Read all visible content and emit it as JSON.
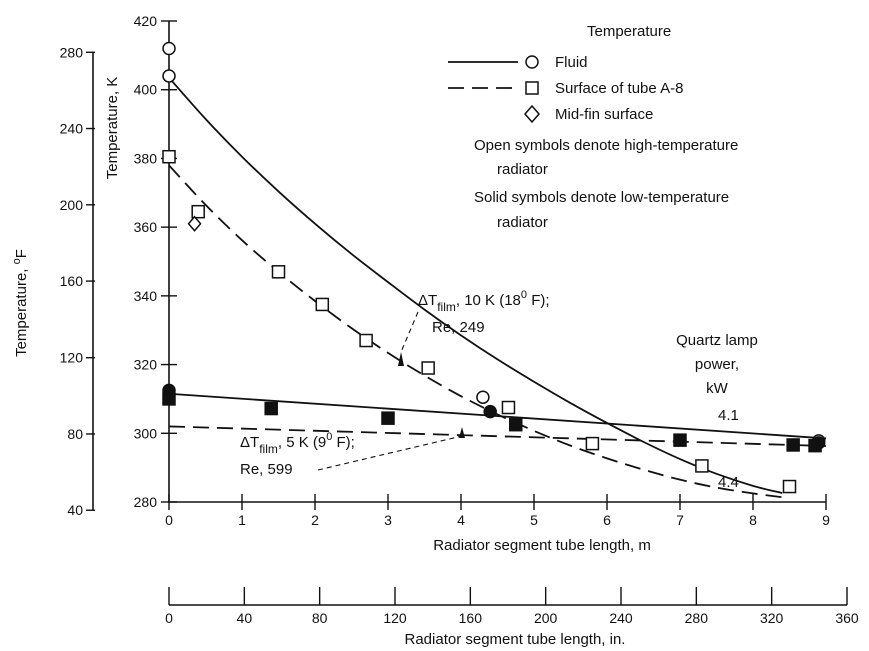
{
  "chart_data": {
    "type": "line",
    "x_axis": {
      "label": "Radiator segment tube length, m",
      "range": [
        0,
        9
      ],
      "ticks": [
        "0",
        "1",
        "2",
        "3",
        "4",
        "5",
        "6",
        "7",
        "8",
        "9"
      ]
    },
    "x2_axis": {
      "label": "Radiator segment tube length, in.",
      "range": [
        0,
        360
      ],
      "ticks": [
        "0",
        "40",
        "80",
        "120",
        "160",
        "200",
        "240",
        "280",
        "320",
        "360"
      ]
    },
    "y_axis": {
      "label": "Temperature, K",
      "range": [
        280,
        420
      ],
      "ticks": [
        "280",
        "300",
        "320",
        "340",
        "360",
        "380",
        "400",
        "420"
      ]
    },
    "y2_axis": {
      "label_main": "Temperature, ",
      "label_sup": "o",
      "label_unit": "F",
      "ticks": [
        "40",
        "80",
        "120",
        "160",
        "200",
        "240",
        "280"
      ],
      "tick_values_K": [
        277.6,
        299.8,
        322.0,
        344.3,
        366.5,
        388.7,
        410.9
      ]
    },
    "legend": {
      "title": "Temperature",
      "entries": [
        {
          "marker": "circle",
          "line": "solid",
          "label": "Fluid"
        },
        {
          "marker": "square",
          "line": "dashed",
          "label": "Surface of tube A-8"
        },
        {
          "marker": "diamond",
          "line": "none",
          "label": "Mid-fin surface"
        }
      ],
      "notes": [
        "Open symbols denote high-temperature",
        "radiator",
        "Solid symbols denote low-temperature",
        "radiator"
      ]
    },
    "annotations": {
      "high": {
        "delta": "ΔT",
        "sub": "film",
        "text1": ", 10 K (18",
        "sup": "0",
        "text2": " F);",
        "line2": "Re, 249"
      },
      "low": {
        "delta": "ΔT",
        "sub": "film",
        "text1": ", 5 K (9",
        "sup": "0",
        "text2": " F);",
        "line2": "Re, 599"
      },
      "power_title": [
        "Quartz lamp",
        "power,",
        "kW"
      ],
      "power_low": "4.1",
      "power_high": "4.4"
    },
    "series": [
      {
        "line": "solid",
        "points": [
          [
            0,
            403.5
          ],
          [
            0.5,
            391.5
          ],
          [
            1,
            380.5
          ],
          [
            1.5,
            370.4
          ],
          [
            2,
            361.0
          ],
          [
            2.5,
            352.2
          ],
          [
            3,
            344.0
          ],
          [
            3.5,
            336.0
          ],
          [
            4,
            328.5
          ],
          [
            4.5,
            321.5
          ],
          [
            5,
            315.0
          ],
          [
            5.5,
            308.8
          ],
          [
            6,
            303.0
          ],
          [
            6.5,
            297.5
          ],
          [
            7,
            292.5
          ],
          [
            7.5,
            288.2
          ],
          [
            8,
            284.7
          ],
          [
            8.4,
            282.6
          ]
        ]
      },
      {
        "line": "dashed",
        "points": [
          [
            0,
            378.0
          ],
          [
            0.5,
            366.5
          ],
          [
            1,
            356.2
          ],
          [
            1.5,
            347.0
          ],
          [
            2,
            338.5
          ],
          [
            2.5,
            330.6
          ],
          [
            3,
            323.4
          ],
          [
            3.5,
            316.8
          ],
          [
            4,
            310.8
          ],
          [
            4.5,
            305.5
          ],
          [
            5,
            300.7
          ],
          [
            5.5,
            296.4
          ],
          [
            6,
            292.7
          ],
          [
            6.5,
            289.4
          ],
          [
            7,
            286.5
          ],
          [
            7.5,
            284.2
          ],
          [
            8,
            282.5
          ],
          [
            8.4,
            281.4
          ]
        ]
      },
      {
        "line": "solid",
        "points": [
          [
            0,
            311.5
          ],
          [
            9,
            298.5
          ]
        ]
      },
      {
        "line": "dashed",
        "points": [
          [
            0,
            302.0
          ],
          [
            9,
            296.3
          ]
        ]
      },
      {
        "marker": "circle",
        "fill": "open",
        "points": [
          [
            0,
            412.0
          ],
          [
            0,
            404.0
          ],
          [
            4.3,
            310.5
          ],
          [
            8.9,
            297.8
          ]
        ]
      },
      {
        "marker": "square",
        "fill": "open",
        "points": [
          [
            0,
            380.5
          ],
          [
            0.4,
            364.5
          ],
          [
            1.5,
            347.0
          ],
          [
            2.1,
            337.5
          ],
          [
            2.7,
            327.0
          ],
          [
            3.55,
            319.0
          ],
          [
            4.65,
            307.5
          ],
          [
            5.8,
            297.0
          ],
          [
            7.3,
            290.5
          ],
          [
            8.5,
            284.5
          ]
        ]
      },
      {
        "marker": "diamond",
        "fill": "open",
        "points": [
          [
            0.35,
            361.0
          ]
        ]
      },
      {
        "marker": "circle",
        "fill": "solid",
        "points": [
          [
            0,
            312.5
          ],
          [
            4.4,
            306.3
          ],
          [
            8.9,
            297.2
          ]
        ]
      },
      {
        "marker": "square",
        "fill": "solid",
        "points": [
          [
            0,
            310.0
          ],
          [
            1.4,
            307.2
          ],
          [
            3.0,
            304.4
          ],
          [
            4.75,
            302.5
          ],
          [
            7.0,
            298.0
          ],
          [
            8.55,
            296.6
          ],
          [
            8.85,
            296.4
          ]
        ]
      }
    ]
  }
}
